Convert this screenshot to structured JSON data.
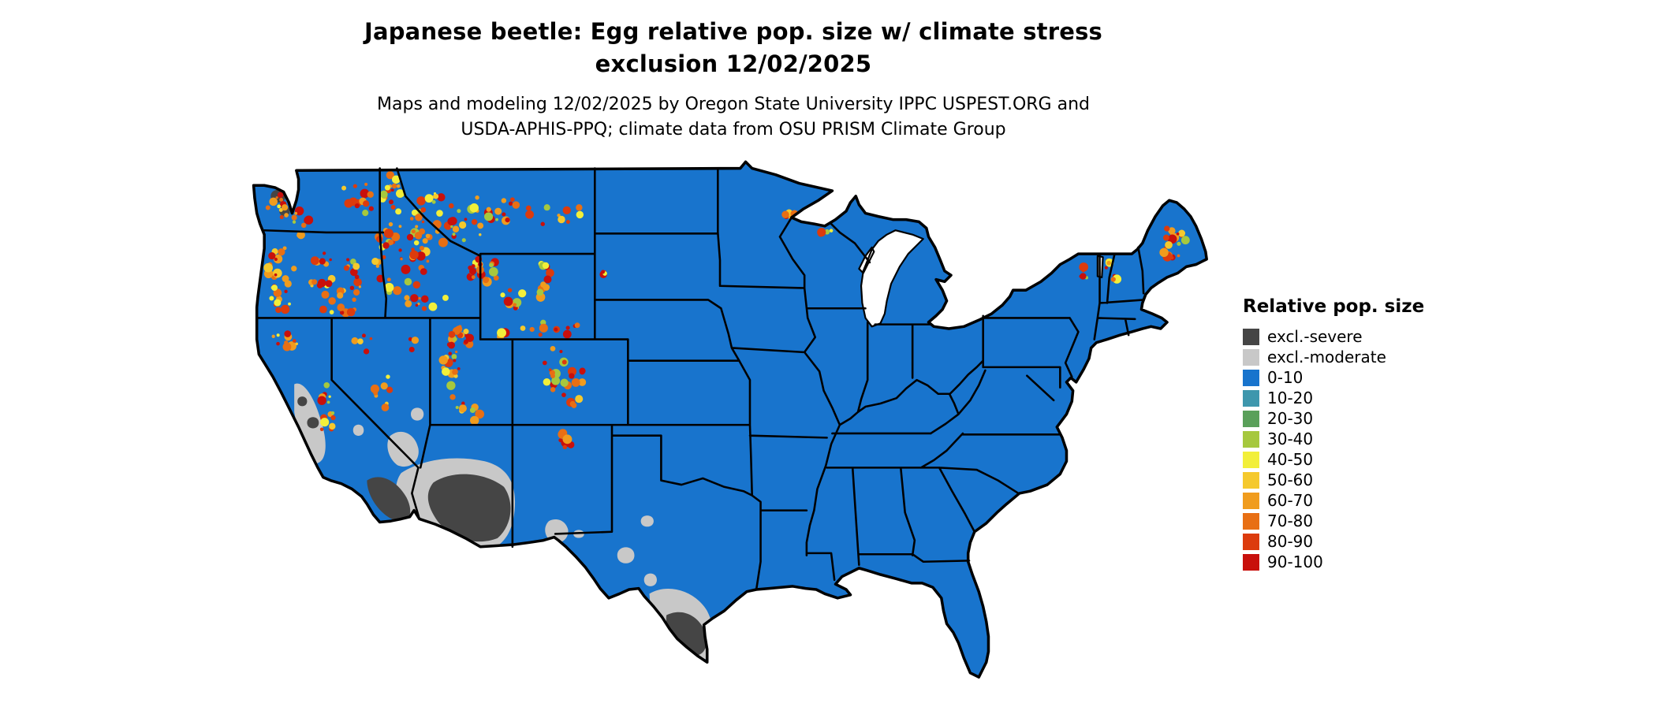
{
  "title": {
    "line1": "Japanese beetle: Egg relative pop. size w/ climate stress",
    "line2": "exclusion 12/02/2025"
  },
  "subtitle": {
    "line1": "Maps and modeling 12/02/2025 by Oregon State University IPPC USPEST.ORG and",
    "line2": "USDA-APHIS-PPQ; climate data from OSU PRISM Climate Group"
  },
  "legend": {
    "title": "Relative pop. size",
    "entries": [
      {
        "label": "excl.-severe",
        "color": "#454545"
      },
      {
        "label": "excl.-moderate",
        "color": "#c8c8c8"
      },
      {
        "label": "0-10",
        "color": "#1874cd"
      },
      {
        "label": "10-20",
        "color": "#3e97ad"
      },
      {
        "label": "20-30",
        "color": "#5aa05a"
      },
      {
        "label": "30-40",
        "color": "#a6c83e"
      },
      {
        "label": "40-50",
        "color": "#f2ef3a"
      },
      {
        "label": "50-60",
        "color": "#f5c92d"
      },
      {
        "label": "60-70",
        "color": "#f09c1e"
      },
      {
        "label": "70-80",
        "color": "#e86f14"
      },
      {
        "label": "80-90",
        "color": "#dc3b0d"
      },
      {
        "label": "90-100",
        "color": "#c8100c"
      }
    ]
  },
  "map": {
    "region": "Continental United States",
    "base_category": "0-10",
    "water_color": "#ffffff",
    "border_color": "#000000"
  }
}
